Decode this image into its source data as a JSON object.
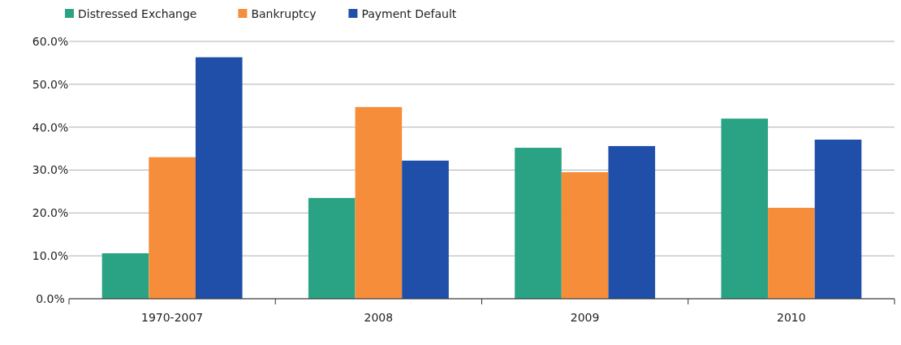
{
  "chart_data": {
    "type": "bar",
    "categories": [
      "1970-2007",
      "2008",
      "2009",
      "2010"
    ],
    "series": [
      {
        "name": "Distressed Exchange",
        "color": "#2aa384",
        "values": [
          10.6,
          23.5,
          35.2,
          42.0
        ]
      },
      {
        "name": "Bankruptcy",
        "color": "#f58d3b",
        "values": [
          33.0,
          44.7,
          29.5,
          21.2
        ]
      },
      {
        "name": "Payment Default",
        "color": "#1f4fa8",
        "values": [
          56.3,
          32.2,
          35.6,
          37.1
        ]
      }
    ],
    "ylim": [
      0,
      60
    ],
    "yticks": [
      {
        "value": 0,
        "label": "0.0%"
      },
      {
        "value": 10,
        "label": "10.0%"
      },
      {
        "value": 20,
        "label": "20.0%"
      },
      {
        "value": 30,
        "label": "30.0%"
      },
      {
        "value": 40,
        "label": "40.0%"
      },
      {
        "value": 50,
        "label": "50.0%"
      },
      {
        "value": 60,
        "label": "60.0%"
      }
    ],
    "grid": "y",
    "legend": "top left"
  }
}
